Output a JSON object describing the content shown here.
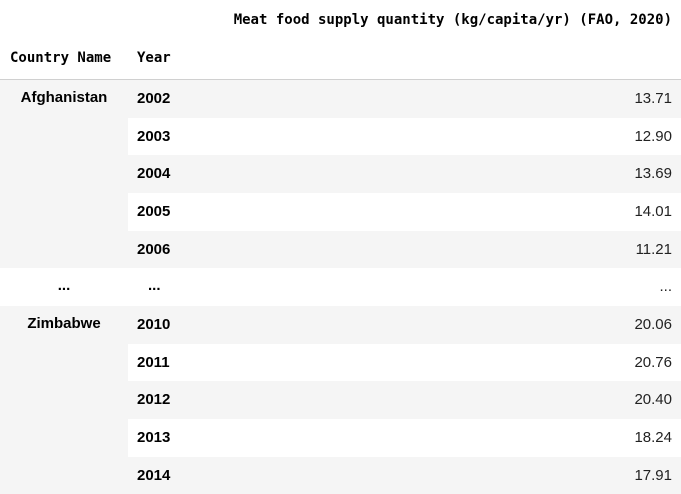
{
  "table": {
    "value_header": "Meat food supply quantity (kg/capita/yr) (FAO, 2020)",
    "columns": {
      "country": "Country Name",
      "year": "Year"
    },
    "rows": [
      {
        "country": "Afghanistan",
        "year": "2002",
        "value": "13.71"
      },
      {
        "country": "",
        "year": "2003",
        "value": "12.90"
      },
      {
        "country": "",
        "year": "2004",
        "value": "13.69"
      },
      {
        "country": "",
        "year": "2005",
        "value": "14.01"
      },
      {
        "country": "",
        "year": "2006",
        "value": "11.21"
      },
      {
        "country": "...",
        "year": "...",
        "value": "..."
      },
      {
        "country": "Zimbabwe",
        "year": "2010",
        "value": "20.06"
      },
      {
        "country": "",
        "year": "2011",
        "value": "20.76"
      },
      {
        "country": "",
        "year": "2012",
        "value": "20.40"
      },
      {
        "country": "",
        "year": "2013",
        "value": "18.24"
      },
      {
        "country": "",
        "year": "2014",
        "value": "17.91"
      }
    ]
  }
}
